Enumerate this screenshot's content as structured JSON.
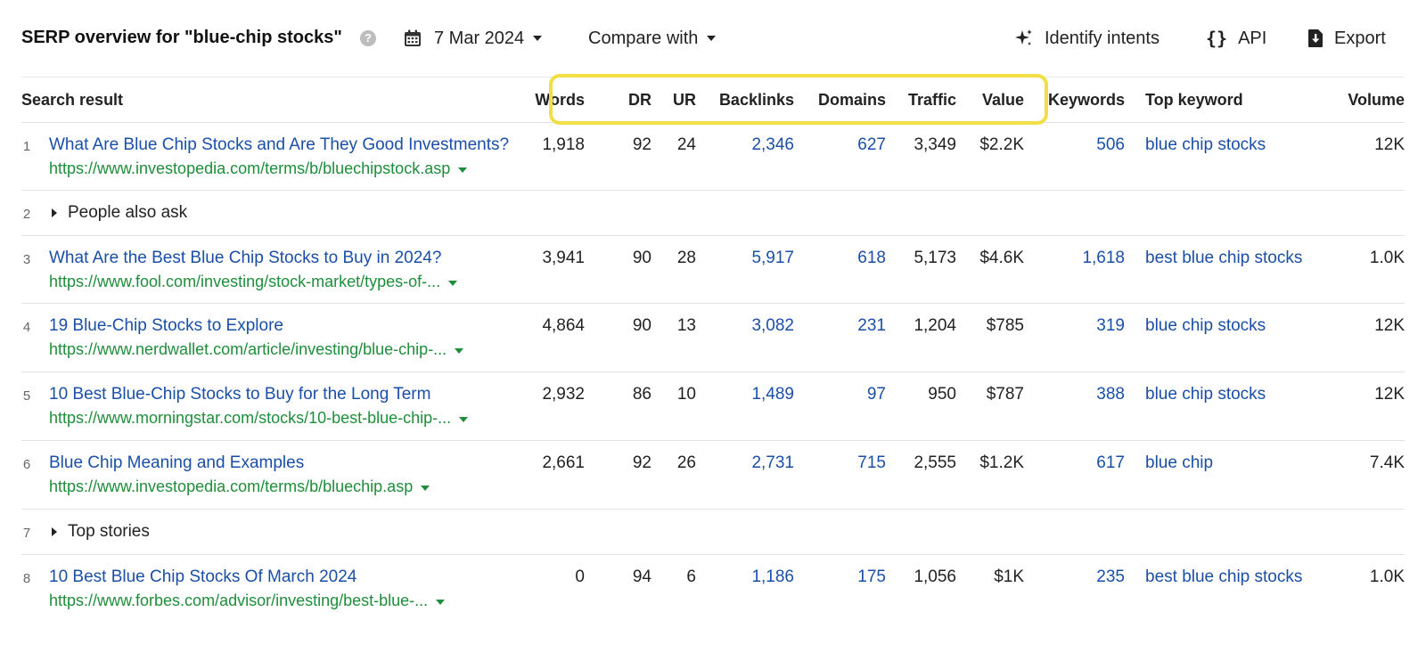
{
  "toolbar": {
    "title": "SERP overview for \"blue-chip stocks\"",
    "help_glyph": "?",
    "date": "7 Mar 2024",
    "compare_label": "Compare with",
    "identify_label": "Identify intents",
    "api_label": "API",
    "api_glyph": "{}",
    "export_label": "Export"
  },
  "columns": {
    "search_result": "Search result",
    "words": "Words",
    "dr": "DR",
    "ur": "UR",
    "backlinks": "Backlinks",
    "domains": "Domains",
    "traffic": "Traffic",
    "value": "Value",
    "keywords": "Keywords",
    "top_keyword": "Top keyword",
    "volume": "Volume"
  },
  "colors": {
    "highlight": "#f2df46",
    "link": "#1a4fa8",
    "url": "#1f8e3b"
  },
  "rows": [
    {
      "n": "1",
      "title": "What Are Blue Chip Stocks and Are They Good Investments?",
      "url": "https://www.investopedia.com/terms/b/bluechipstock.asp",
      "words": "1,918",
      "dr": "92",
      "ur": "24",
      "backlinks": "2,346",
      "domains": "627",
      "traffic": "3,349",
      "value": "$2.2K",
      "keywords": "506",
      "top_keyword": "blue chip stocks",
      "volume": "12K"
    },
    {
      "n": "2",
      "label": "People also ask"
    },
    {
      "n": "3",
      "title": "What Are the Best Blue Chip Stocks to Buy in 2024?",
      "url": "https://www.fool.com/investing/stock-market/types-of-...",
      "words": "3,941",
      "dr": "90",
      "ur": "28",
      "backlinks": "5,917",
      "domains": "618",
      "traffic": "5,173",
      "value": "$4.6K",
      "keywords": "1,618",
      "top_keyword": "best blue chip stocks",
      "volume": "1.0K"
    },
    {
      "n": "4",
      "title": "19 Blue-Chip Stocks to Explore",
      "url": "https://www.nerdwallet.com/article/investing/blue-chip-...",
      "words": "4,864",
      "dr": "90",
      "ur": "13",
      "backlinks": "3,082",
      "domains": "231",
      "traffic": "1,204",
      "value": "$785",
      "keywords": "319",
      "top_keyword": "blue chip stocks",
      "volume": "12K"
    },
    {
      "n": "5",
      "title": "10 Best Blue-Chip Stocks to Buy for the Long Term",
      "url": "https://www.morningstar.com/stocks/10-best-blue-chip-...",
      "words": "2,932",
      "dr": "86",
      "ur": "10",
      "backlinks": "1,489",
      "domains": "97",
      "traffic": "950",
      "value": "$787",
      "keywords": "388",
      "top_keyword": "blue chip stocks",
      "volume": "12K"
    },
    {
      "n": "6",
      "title": "Blue Chip Meaning and Examples",
      "url": "https://www.investopedia.com/terms/b/bluechip.asp",
      "words": "2,661",
      "dr": "92",
      "ur": "26",
      "backlinks": "2,731",
      "domains": "715",
      "traffic": "2,555",
      "value": "$1.2K",
      "keywords": "617",
      "top_keyword": "blue chip",
      "volume": "7.4K"
    },
    {
      "n": "7",
      "label": "Top stories"
    },
    {
      "n": "8",
      "title": "10 Best Blue Chip Stocks Of March 2024",
      "url": "https://www.forbes.com/advisor/investing/best-blue-...",
      "words": "0",
      "dr": "94",
      "ur": "6",
      "backlinks": "1,186",
      "domains": "175",
      "traffic": "1,056",
      "value": "$1K",
      "keywords": "235",
      "top_keyword": "best blue chip stocks",
      "volume": "1.0K"
    }
  ]
}
